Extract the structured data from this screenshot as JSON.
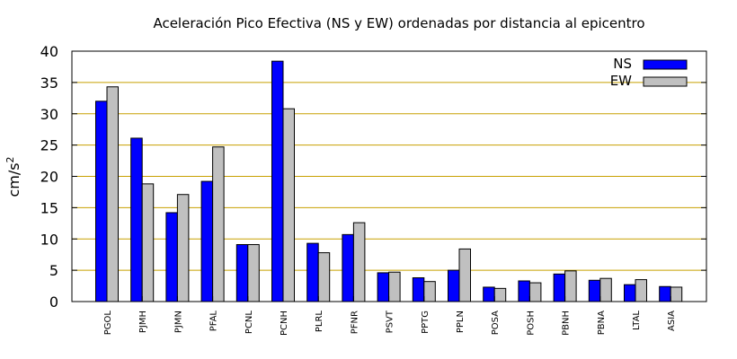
{
  "chart_data": {
    "type": "bar",
    "title": "Aceleración Pico Efectiva (NS y EW) ordenadas por distancia al epicentro",
    "xlabel": "",
    "ylabel": "cm/s",
    "ylabel_superscript": "2",
    "ylim": [
      0,
      40
    ],
    "yticks": [
      "0",
      "5",
      "10",
      "15",
      "20",
      "25",
      "30",
      "35",
      "40"
    ],
    "grid": "horizontal",
    "legend_position": "top-right",
    "categories": [
      "PGOL",
      "PJMH",
      "PJMN",
      "PFAL",
      "PCNL",
      "PCNH",
      "PLRL",
      "PFNR",
      "PSVT",
      "PPTG",
      "PPLN",
      "POSA",
      "POSH",
      "PBNH",
      "PBNA",
      "LTAL",
      "ASIA"
    ],
    "series": [
      {
        "name": "NS",
        "color": "#0000ff",
        "values": [
          32.0,
          26.1,
          14.2,
          19.2,
          9.1,
          38.4,
          9.3,
          10.7,
          4.6,
          3.8,
          5.0,
          2.3,
          3.3,
          4.4,
          3.4,
          2.7,
          2.4
        ]
      },
      {
        "name": "EW",
        "color": "#c0c0c0",
        "values": [
          34.3,
          18.8,
          17.1,
          24.7,
          9.1,
          30.8,
          7.8,
          12.6,
          4.7,
          3.2,
          8.4,
          2.1,
          3.0,
          4.9,
          3.7,
          3.5,
          2.3
        ]
      }
    ],
    "colors": {
      "grid": "#c8a000",
      "axis": "#000000",
      "bar_border": "#000000"
    }
  }
}
